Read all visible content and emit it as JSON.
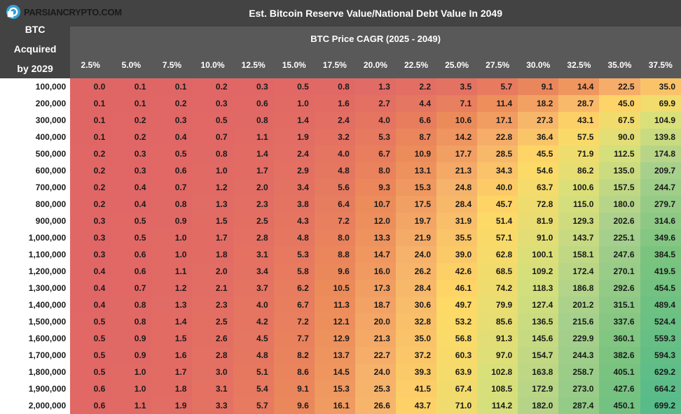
{
  "logo": {
    "text": "PARSIANCRYPTO.COM"
  },
  "title": "Est. Bitcoin Reserve Value/National Debt Value In 2049",
  "subtitle": "BTC Price CAGR (2025 - 2049)",
  "row_header_title": "BTC\nAcquired\nby 2029",
  "heatmap": {
    "type": "heatmap",
    "background_color": "#ffffff",
    "header_bg": "#434343",
    "subheader_bg": "#595959",
    "header_text_color": "#ffffff",
    "cell_text_color": "#1a1a1a",
    "cell_fontsize": 12,
    "cell_fontweight": "bold",
    "color_scale_min": 0.0,
    "color_scale_max": 699.2,
    "color_stops": [
      {
        "t": 0.0,
        "hex": "#e06666"
      },
      {
        "t": 0.015,
        "hex": "#ec8b5a"
      },
      {
        "t": 0.035,
        "hex": "#f6b26b"
      },
      {
        "t": 0.07,
        "hex": "#ffd966"
      },
      {
        "t": 0.15,
        "hex": "#d9e07a"
      },
      {
        "t": 0.3,
        "hex": "#a8d08d"
      },
      {
        "t": 0.55,
        "hex": "#7bc47f"
      },
      {
        "t": 1.0,
        "hex": "#57bb8a"
      }
    ],
    "col_labels": [
      "2.5%",
      "5.0%",
      "7.5%",
      "10.0%",
      "12.5%",
      "15.0%",
      "17.5%",
      "20.0%",
      "22.5%",
      "25.0%",
      "27.5%",
      "30.0%",
      "32.5%",
      "35.0%",
      "37.5%"
    ],
    "row_labels": [
      "100,000",
      "200,000",
      "300,000",
      "400,000",
      "500,000",
      "600,000",
      "700,000",
      "800,000",
      "900,000",
      "1,000,000",
      "1,100,000",
      "1,200,000",
      "1,300,000",
      "1,400,000",
      "1,500,000",
      "1,600,000",
      "1,700,000",
      "1,800,000",
      "1,900,000",
      "2,000,000"
    ],
    "values": [
      [
        0.0,
        0.1,
        0.1,
        0.2,
        0.3,
        0.5,
        0.8,
        1.3,
        2.2,
        3.5,
        5.7,
        9.1,
        14.4,
        22.5,
        35.0
      ],
      [
        0.1,
        0.1,
        0.2,
        0.3,
        0.6,
        1.0,
        1.6,
        2.7,
        4.4,
        7.1,
        11.4,
        18.2,
        28.7,
        45.0,
        69.9
      ],
      [
        0.1,
        0.2,
        0.3,
        0.5,
        0.8,
        1.4,
        2.4,
        4.0,
        6.6,
        10.6,
        17.1,
        27.3,
        43.1,
        67.5,
        104.9
      ],
      [
        0.1,
        0.2,
        0.4,
        0.7,
        1.1,
        1.9,
        3.2,
        5.3,
        8.7,
        14.2,
        22.8,
        36.4,
        57.5,
        90.0,
        139.8
      ],
      [
        0.2,
        0.3,
        0.5,
        0.8,
        1.4,
        2.4,
        4.0,
        6.7,
        10.9,
        17.7,
        28.5,
        45.5,
        71.9,
        112.5,
        174.8
      ],
      [
        0.2,
        0.3,
        0.6,
        1.0,
        1.7,
        2.9,
        4.8,
        8.0,
        13.1,
        21.3,
        34.3,
        54.6,
        86.2,
        135.0,
        209.7
      ],
      [
        0.2,
        0.4,
        0.7,
        1.2,
        2.0,
        3.4,
        5.6,
        9.3,
        15.3,
        24.8,
        40.0,
        63.7,
        100.6,
        157.5,
        244.7
      ],
      [
        0.2,
        0.4,
        0.8,
        1.3,
        2.3,
        3.8,
        6.4,
        10.7,
        17.5,
        28.4,
        45.7,
        72.8,
        115.0,
        180.0,
        279.7
      ],
      [
        0.3,
        0.5,
        0.9,
        1.5,
        2.5,
        4.3,
        7.2,
        12.0,
        19.7,
        31.9,
        51.4,
        81.9,
        129.3,
        202.6,
        314.6
      ],
      [
        0.3,
        0.5,
        1.0,
        1.7,
        2.8,
        4.8,
        8.0,
        13.3,
        21.9,
        35.5,
        57.1,
        91.0,
        143.7,
        225.1,
        349.6
      ],
      [
        0.3,
        0.6,
        1.0,
        1.8,
        3.1,
        5.3,
        8.8,
        14.7,
        24.0,
        39.0,
        62.8,
        100.1,
        158.1,
        247.6,
        384.5
      ],
      [
        0.4,
        0.6,
        1.1,
        2.0,
        3.4,
        5.8,
        9.6,
        16.0,
        26.2,
        42.6,
        68.5,
        109.2,
        172.4,
        270.1,
        419.5
      ],
      [
        0.4,
        0.7,
        1.2,
        2.1,
        3.7,
        6.2,
        10.5,
        17.3,
        28.4,
        46.1,
        74.2,
        118.3,
        186.8,
        292.6,
        454.5
      ],
      [
        0.4,
        0.8,
        1.3,
        2.3,
        4.0,
        6.7,
        11.3,
        18.7,
        30.6,
        49.7,
        79.9,
        127.4,
        201.2,
        315.1,
        489.4
      ],
      [
        0.5,
        0.8,
        1.4,
        2.5,
        4.2,
        7.2,
        12.1,
        20.0,
        32.8,
        53.2,
        85.6,
        136.5,
        215.6,
        337.6,
        524.4
      ],
      [
        0.5,
        0.9,
        1.5,
        2.6,
        4.5,
        7.7,
        12.9,
        21.3,
        35.0,
        56.8,
        91.3,
        145.6,
        229.9,
        360.1,
        559.3
      ],
      [
        0.5,
        0.9,
        1.6,
        2.8,
        4.8,
        8.2,
        13.7,
        22.7,
        37.2,
        60.3,
        97.0,
        154.7,
        244.3,
        382.6,
        594.3
      ],
      [
        0.5,
        1.0,
        1.7,
        3.0,
        5.1,
        8.6,
        14.5,
        24.0,
        39.3,
        63.9,
        102.8,
        163.8,
        258.7,
        405.1,
        629.2
      ],
      [
        0.6,
        1.0,
        1.8,
        3.1,
        5.4,
        9.1,
        15.3,
        25.3,
        41.5,
        67.4,
        108.5,
        172.9,
        273.0,
        427.6,
        664.2
      ],
      [
        0.6,
        1.1,
        1.9,
        3.3,
        5.7,
        9.6,
        16.1,
        26.6,
        43.7,
        71.0,
        114.2,
        182.0,
        287.4,
        450.1,
        699.2
      ]
    ]
  }
}
